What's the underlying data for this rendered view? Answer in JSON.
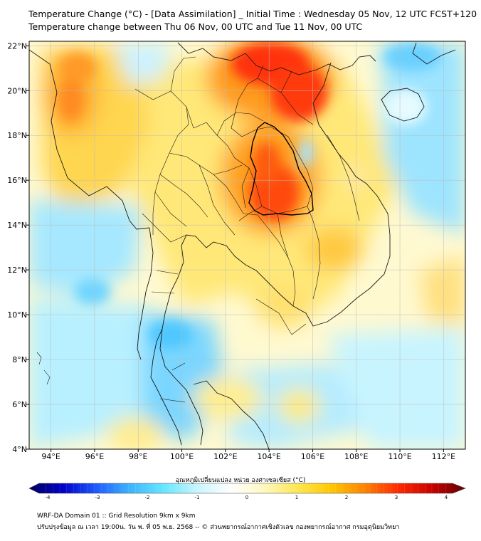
{
  "header": {
    "title_line1": "Temperature Change (°C) - [Data Assimilation] _ Initial Time : Wednesday 05 Nov, 12 UTC FCST+120",
    "title_line2": "Temperature change between Thu 06 Nov, 00 UTC and Tue 11 Nov, 00 UTC"
  },
  "map": {
    "lat_labels": [
      "22°N",
      "20°N",
      "18°N",
      "16°N",
      "14°N",
      "12°N",
      "10°N",
      "8°N",
      "6°N",
      "4°N"
    ],
    "lon_labels": [
      "94°E",
      "96°E",
      "98°E",
      "100°E",
      "102°E",
      "104°E",
      "106°E",
      "108°E",
      "110°E",
      "112°E"
    ],
    "lat_values": [
      22,
      20,
      18,
      16,
      14,
      12,
      10,
      8,
      6,
      4
    ],
    "lon_values": [
      94,
      96,
      98,
      100,
      102,
      104,
      106,
      108,
      110,
      112
    ],
    "extent": {
      "lon_min": 93,
      "lon_max": 113,
      "lat_min": 4,
      "lat_max": 22.2
    },
    "warm_regions": [
      {
        "name": "northeast-thailand-hotspot",
        "lon": 103.8,
        "lat": 15.6,
        "change": 3.0
      },
      {
        "name": "north-vietnam-hotspot",
        "lon": 104.5,
        "lat": 21.2,
        "change": 3.2
      },
      {
        "name": "myanmar-west",
        "lon": 95.0,
        "lat": 19.5,
        "change": 2.2
      }
    ],
    "cool_regions": [
      {
        "name": "south-china-sea-north",
        "lon": 110.5,
        "lat": 20.0,
        "change": -1.2
      },
      {
        "name": "andaman-sea",
        "lon": 98.5,
        "lat": 8.0,
        "change": -1.5
      }
    ]
  },
  "colorbar": {
    "title": "อุณหภูมิเปลี่ยนแปลง หน่วย องศาเซลเซียส (°C)",
    "tick_labels": [
      "-4",
      "-3",
      "-2",
      "-1",
      "0",
      "1",
      "2",
      "3",
      "4"
    ],
    "min": -4,
    "max": 4,
    "colors": [
      "#00005a",
      "#0000c8",
      "#1e5aff",
      "#3cb4ff",
      "#64e6ff",
      "#c8f5ff",
      "#ffffff",
      "#fff8c0",
      "#ffe650",
      "#ffc800",
      "#ff8200",
      "#ff2800",
      "#c80000",
      "#640000"
    ]
  },
  "footer": {
    "line1": "WRF-DA Domain 01 :: Grid Resolution 9km x 9km",
    "line2": "ปรับปรุงข้อมูล ณ เวลา 19:00น. วัน พ. ที่ 05 พ.ย. 2568 -- © ส่วนพยากรณ์อากาศเชิงตัวเลข กองพยากรณ์อากาศ กรมอุตุนิยมวิทยา"
  }
}
